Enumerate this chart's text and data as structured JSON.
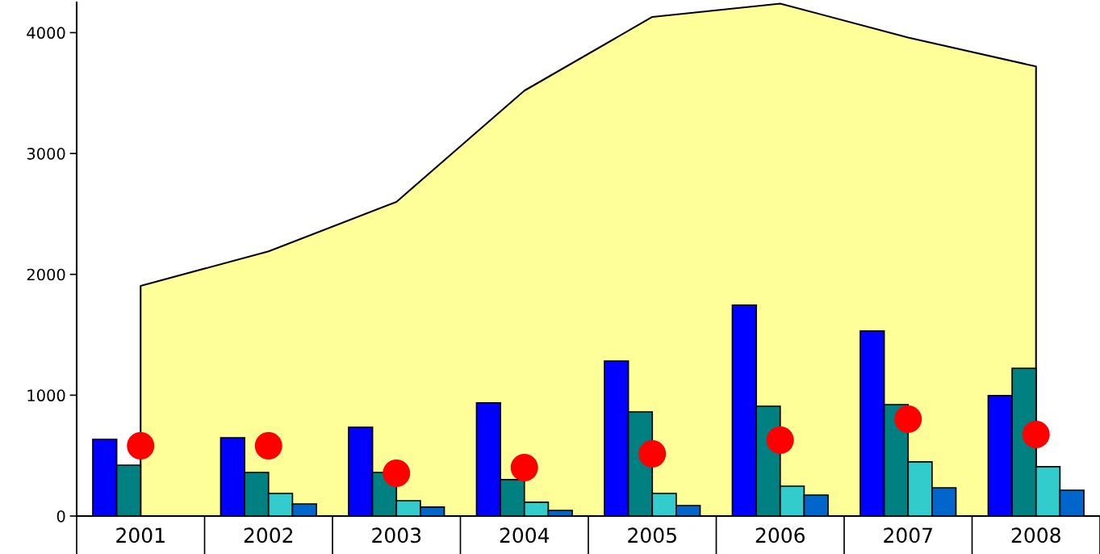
{
  "chart_data": {
    "type": "bar",
    "categories": [
      "2001",
      "2002",
      "2003",
      "2004",
      "2005",
      "2006",
      "2007",
      "2008"
    ],
    "series": [
      {
        "type": "area",
        "color": "#ffff99",
        "values": [
          1905,
          2190,
          2600,
          3520,
          4130,
          4240,
          3960,
          3720
        ]
      },
      {
        "color": "#0000ff",
        "values": [
          635,
          648,
          735,
          936,
          1283,
          1745,
          1531,
          996
        ]
      },
      {
        "color": "#008080",
        "values": [
          421,
          361,
          361,
          301,
          862,
          909,
          922,
          1223
        ]
      },
      {
        "color": "#33cccc",
        "values": [
          null,
          187,
          127,
          114,
          187,
          247,
          448,
          408
        ]
      },
      {
        "color": "#0066cc",
        "values": [
          null,
          100,
          74,
          47,
          87,
          174,
          234,
          214
        ]
      },
      {
        "type": "scatter",
        "marker": "circle",
        "color": "#ff0000",
        "values": [
          582,
          582,
          354,
          401,
          515,
          628,
          802,
          675
        ]
      }
    ],
    "ylim": [
      0,
      4250
    ],
    "yticks": [
      0,
      1000,
      2000,
      3000,
      4000
    ],
    "grid": false,
    "legend": false
  }
}
